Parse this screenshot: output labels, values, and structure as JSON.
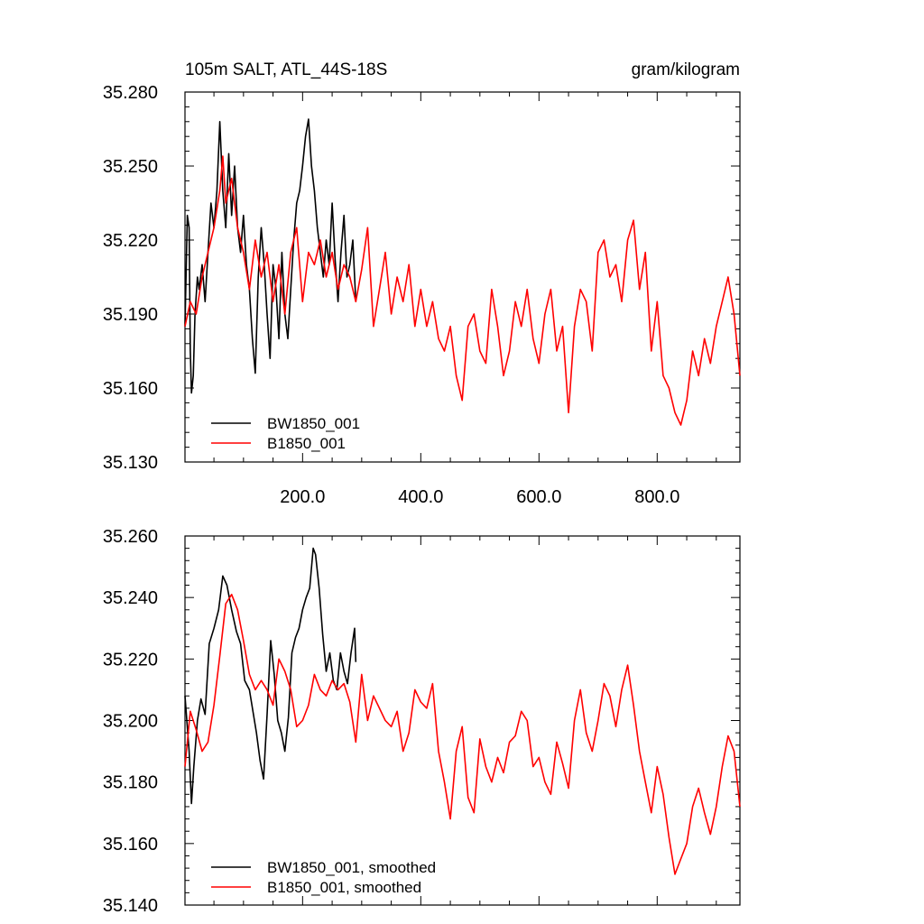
{
  "figure_title": {
    "left": "105m SALT, ATL_44S-18S",
    "right": "gram/kilogram"
  },
  "colors": {
    "BW1850_001": "#000000",
    "B1850_001": "#ff0000"
  },
  "chart_data": [
    {
      "type": "line",
      "title": "105m SALT, ATL_44S-18S",
      "units": "gram/kilogram",
      "xlim": [
        1,
        940
      ],
      "ylim": [
        35.13,
        35.28
      ],
      "x_ticks": [
        200,
        400,
        600,
        800
      ],
      "x_tick_labels": [
        "200.0",
        "400.0",
        "600.0",
        "800.0"
      ],
      "y_ticks": [
        35.13,
        35.16,
        35.19,
        35.22,
        35.25,
        35.28
      ],
      "y_tick_labels": [
        "35.130",
        "35.160",
        "35.190",
        "35.220",
        "35.250",
        "35.280"
      ],
      "legend_position": "bottom-left",
      "series": [
        {
          "name": "BW1850_001",
          "color": "#000000",
          "x": [
            1,
            5,
            8,
            10,
            12,
            15,
            18,
            22,
            25,
            30,
            35,
            40,
            45,
            50,
            55,
            60,
            65,
            70,
            75,
            80,
            85,
            90,
            95,
            100,
            105,
            110,
            115,
            120,
            125,
            130,
            135,
            140,
            145,
            150,
            155,
            160,
            165,
            170,
            175,
            180,
            185,
            190,
            195,
            200,
            205,
            210,
            215,
            220,
            225,
            230,
            235,
            240,
            245,
            250,
            255,
            260,
            265,
            270,
            275,
            280,
            285,
            290
          ],
          "y": [
            35.185,
            35.23,
            35.225,
            35.175,
            35.158,
            35.165,
            35.19,
            35.205,
            35.2,
            35.21,
            35.195,
            35.215,
            35.235,
            35.225,
            35.24,
            35.268,
            35.24,
            35.225,
            35.255,
            35.23,
            35.25,
            35.225,
            35.215,
            35.23,
            35.21,
            35.2,
            35.18,
            35.166,
            35.205,
            35.225,
            35.21,
            35.19,
            35.172,
            35.21,
            35.2,
            35.18,
            35.215,
            35.19,
            35.18,
            35.2,
            35.22,
            35.235,
            35.24,
            35.25,
            35.262,
            35.269,
            35.25,
            35.24,
            35.225,
            35.215,
            35.205,
            35.22,
            35.21,
            35.235,
            35.212,
            35.195,
            35.215,
            35.23,
            35.205,
            35.21,
            35.22,
            35.195
          ]
        },
        {
          "name": "B1850_001",
          "color": "#ff0000",
          "x": [
            1,
            10,
            20,
            30,
            40,
            50,
            60,
            65,
            70,
            80,
            90,
            100,
            110,
            120,
            130,
            140,
            150,
            160,
            170,
            180,
            190,
            200,
            210,
            220,
            230,
            240,
            250,
            260,
            270,
            280,
            290,
            300,
            310,
            320,
            330,
            340,
            350,
            360,
            370,
            380,
            390,
            400,
            410,
            420,
            430,
            440,
            450,
            460,
            470,
            480,
            490,
            500,
            510,
            520,
            530,
            540,
            550,
            560,
            570,
            580,
            590,
            600,
            610,
            620,
            630,
            640,
            650,
            660,
            670,
            680,
            690,
            700,
            710,
            720,
            730,
            740,
            750,
            760,
            770,
            780,
            790,
            800,
            810,
            820,
            830,
            840,
            850,
            860,
            870,
            880,
            890,
            900,
            910,
            920,
            930,
            940
          ],
          "y": [
            35.185,
            35.195,
            35.19,
            35.205,
            35.215,
            35.225,
            35.24,
            35.254,
            35.235,
            35.245,
            35.225,
            35.215,
            35.2,
            35.22,
            35.205,
            35.215,
            35.195,
            35.21,
            35.19,
            35.215,
            35.225,
            35.195,
            35.215,
            35.21,
            35.22,
            35.205,
            35.215,
            35.2,
            35.21,
            35.205,
            35.195,
            35.208,
            35.225,
            35.185,
            35.2,
            35.215,
            35.19,
            35.205,
            35.195,
            35.21,
            35.185,
            35.2,
            35.185,
            35.195,
            35.18,
            35.175,
            35.185,
            35.165,
            35.155,
            35.185,
            35.19,
            35.175,
            35.17,
            35.2,
            35.185,
            35.165,
            35.175,
            35.195,
            35.185,
            35.2,
            35.18,
            35.17,
            35.19,
            35.2,
            35.175,
            35.185,
            35.15,
            35.185,
            35.2,
            35.195,
            35.175,
            35.215,
            35.22,
            35.205,
            35.21,
            35.195,
            35.22,
            35.228,
            35.2,
            35.215,
            35.175,
            35.195,
            35.165,
            35.16,
            35.15,
            35.145,
            35.155,
            35.175,
            35.165,
            35.18,
            35.17,
            35.185,
            35.195,
            35.205,
            35.19,
            35.165
          ]
        }
      ]
    },
    {
      "type": "line",
      "xlim": [
        1,
        940
      ],
      "ylim": [
        35.14,
        35.26
      ],
      "x_ticks": [
        200,
        400,
        600,
        800
      ],
      "y_ticks": [
        35.14,
        35.16,
        35.18,
        35.2,
        35.22,
        35.24,
        35.26
      ],
      "y_tick_labels": [
        "35.140",
        "35.160",
        "35.180",
        "35.200",
        "35.220",
        "35.240",
        "35.260"
      ],
      "legend_position": "bottom-left",
      "series": [
        {
          "name": "BW1850_001, smoothed",
          "color": "#000000",
          "x": [
            1,
            8,
            12,
            16,
            22,
            28,
            35,
            42,
            50,
            58,
            65,
            72,
            80,
            88,
            95,
            102,
            110,
            116,
            122,
            128,
            134,
            140,
            146,
            152,
            158,
            164,
            170,
            176,
            182,
            188,
            194,
            200,
            206,
            212,
            218,
            222,
            228,
            234,
            240,
            246,
            252,
            258,
            264,
            270,
            276,
            282,
            288,
            290
          ],
          "y": [
            35.208,
            35.19,
            35.173,
            35.185,
            35.2,
            35.207,
            35.202,
            35.225,
            35.23,
            35.236,
            35.247,
            35.244,
            35.236,
            35.229,
            35.225,
            35.213,
            35.21,
            35.203,
            35.196,
            35.187,
            35.181,
            35.202,
            35.226,
            35.215,
            35.2,
            35.196,
            35.19,
            35.201,
            35.222,
            35.227,
            35.23,
            35.236,
            35.24,
            35.243,
            35.256,
            35.254,
            35.243,
            35.228,
            35.216,
            35.222,
            35.213,
            35.21,
            35.222,
            35.216,
            35.212,
            35.222,
            35.23,
            35.219
          ]
        },
        {
          "name": "B1850_001, smoothed",
          "color": "#ff0000",
          "x": [
            1,
            10,
            20,
            30,
            40,
            50,
            60,
            70,
            80,
            90,
            100,
            110,
            120,
            130,
            140,
            150,
            160,
            170,
            180,
            190,
            200,
            210,
            220,
            230,
            240,
            250,
            260,
            270,
            280,
            290,
            300,
            310,
            320,
            330,
            340,
            350,
            360,
            370,
            380,
            390,
            400,
            410,
            420,
            430,
            440,
            450,
            460,
            470,
            480,
            490,
            500,
            510,
            520,
            530,
            540,
            550,
            560,
            570,
            580,
            590,
            600,
            610,
            620,
            630,
            640,
            650,
            660,
            670,
            680,
            690,
            700,
            710,
            720,
            730,
            740,
            750,
            760,
            770,
            780,
            790,
            800,
            810,
            820,
            830,
            840,
            850,
            860,
            870,
            880,
            890,
            900,
            910,
            920,
            930,
            940
          ],
          "y": [
            35.185,
            35.203,
            35.197,
            35.19,
            35.193,
            35.205,
            35.221,
            35.238,
            35.241,
            35.236,
            35.226,
            35.215,
            35.21,
            35.213,
            35.21,
            35.205,
            35.22,
            35.216,
            35.21,
            35.198,
            35.2,
            35.205,
            35.215,
            35.21,
            35.208,
            35.213,
            35.21,
            35.212,
            35.206,
            35.193,
            35.215,
            35.2,
            35.208,
            35.204,
            35.2,
            35.198,
            35.203,
            35.19,
            35.196,
            35.21,
            35.206,
            35.204,
            35.212,
            35.19,
            35.18,
            35.168,
            35.19,
            35.198,
            35.175,
            35.17,
            35.194,
            35.185,
            35.18,
            35.188,
            35.183,
            35.193,
            35.195,
            35.203,
            35.2,
            35.185,
            35.188,
            35.18,
            35.176,
            35.193,
            35.186,
            35.178,
            35.2,
            35.21,
            35.196,
            35.19,
            35.2,
            35.212,
            35.208,
            35.198,
            35.21,
            35.218,
            35.205,
            35.19,
            35.18,
            35.17,
            35.185,
            35.176,
            35.162,
            35.15,
            35.155,
            35.16,
            35.172,
            35.178,
            35.17,
            35.163,
            35.172,
            35.185,
            35.195,
            35.19,
            35.172
          ]
        }
      ]
    }
  ]
}
